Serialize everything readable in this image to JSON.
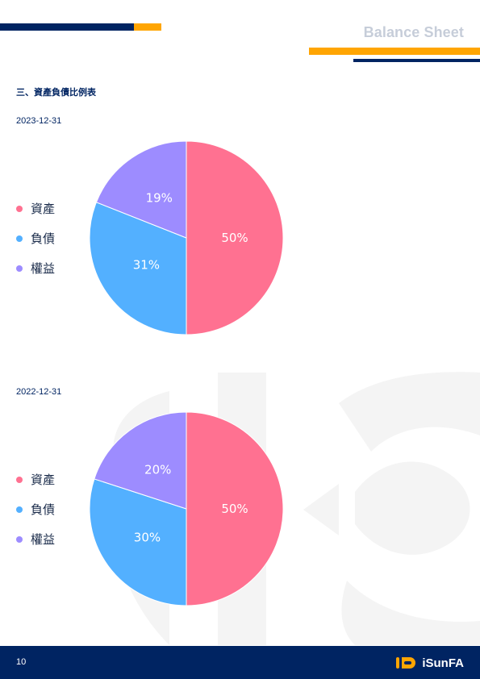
{
  "header": {
    "title": "Balance Sheet"
  },
  "section": {
    "heading": "三、資產負債比例表"
  },
  "colors": {
    "navy": "#002462",
    "gold": "#ffa502",
    "assets": "#ff7191",
    "liabilities": "#53b0ff",
    "equity": "#9d8cff"
  },
  "charts": [
    {
      "date": "2023-12-31",
      "legend": [
        "資產",
        "負債",
        "權益"
      ]
    },
    {
      "date": "2022-12-31",
      "legend": [
        "資產",
        "負債",
        "權益"
      ]
    }
  ],
  "chart_data": [
    {
      "type": "pie",
      "title": "2023-12-31",
      "categories": [
        "資產",
        "負債",
        "權益"
      ],
      "values": [
        50,
        31,
        19
      ],
      "labels": [
        "50%",
        "31%",
        "19%"
      ],
      "colors": [
        "#ff7191",
        "#53b0ff",
        "#9d8cff"
      ],
      "legend_position": "left"
    },
    {
      "type": "pie",
      "title": "2022-12-31",
      "categories": [
        "資產",
        "負債",
        "權益"
      ],
      "values": [
        50,
        30,
        20
      ],
      "labels": [
        "50%",
        "30%",
        "20%"
      ],
      "colors": [
        "#ff7191",
        "#53b0ff",
        "#9d8cff"
      ],
      "legend_position": "left"
    }
  ],
  "footer": {
    "page_number": "10",
    "brand_name": "iSunFA",
    "logo_icon": "isunfa-logo-icon"
  }
}
